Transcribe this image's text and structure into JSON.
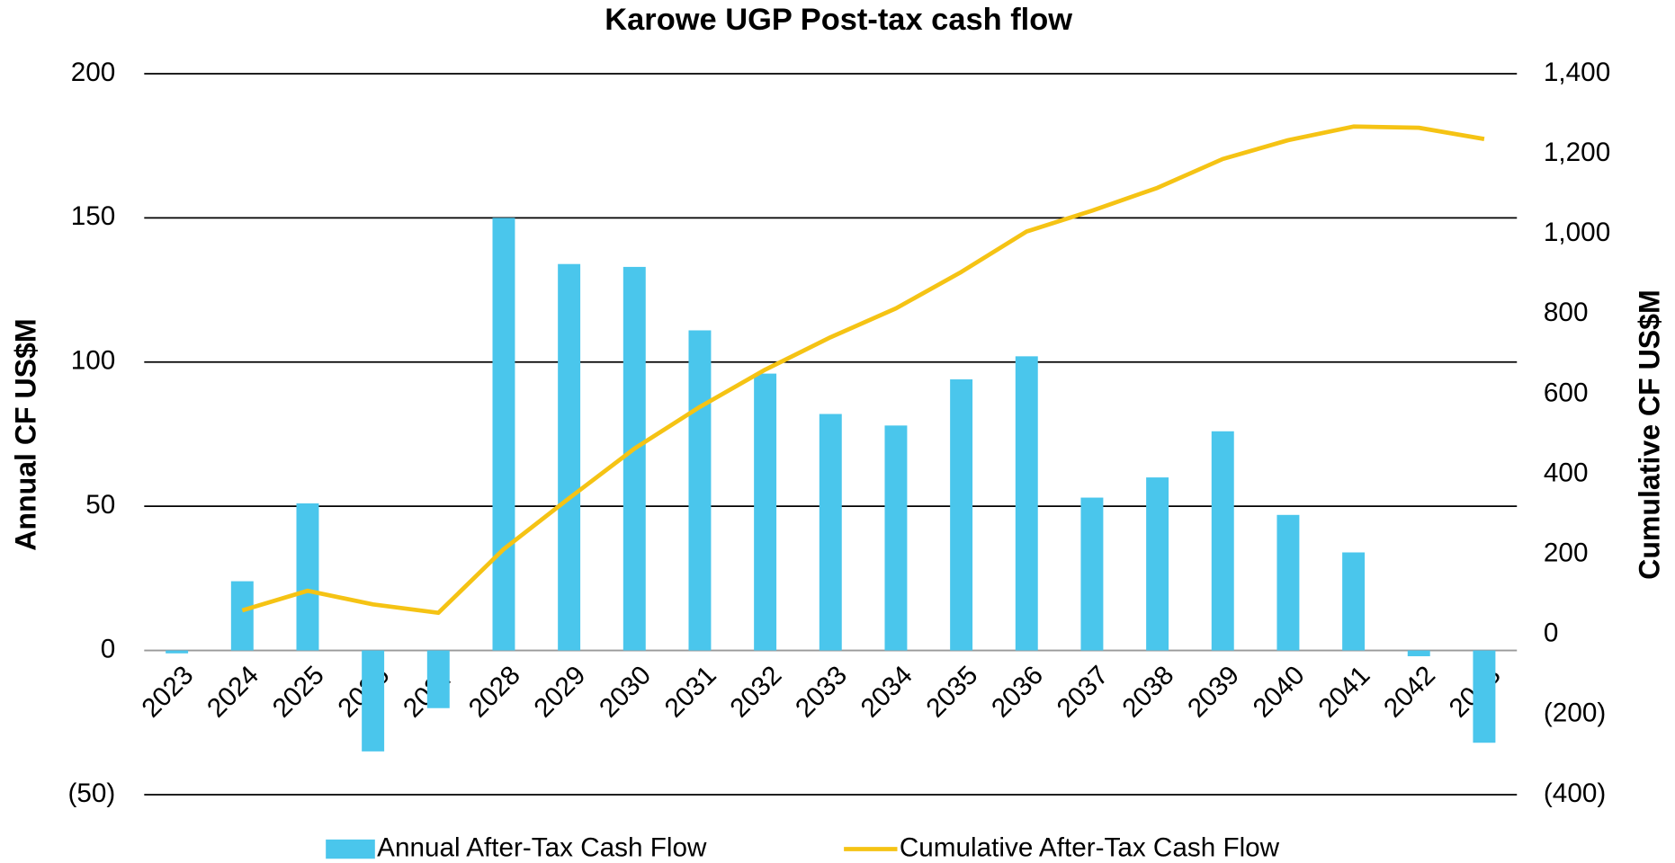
{
  "chart_data": {
    "type": "bar-line",
    "title": "Karowe UGP Post-tax cash flow",
    "y_label": "Annual CF US$M",
    "y2_label": "Cumulative CF US$M",
    "categories": [
      "2023",
      "2024",
      "2025",
      "2026",
      "2027",
      "2028",
      "2029",
      "2030",
      "2031",
      "2032",
      "2033",
      "2034",
      "2035",
      "2036",
      "2037",
      "2038",
      "2039",
      "2040",
      "2041",
      "2042",
      "2043"
    ],
    "series": [
      {
        "name": "Annual After-Tax Cash Flow",
        "type": "bar",
        "color": "#4ac6ec",
        "values": [
          -1,
          24,
          51,
          -35,
          -20,
          150,
          134,
          133,
          111,
          96,
          82,
          78,
          94,
          102,
          53,
          60,
          76,
          47,
          34,
          -2,
          -32
        ]
      },
      {
        "name": "Cumulative After-Tax Cash Flow",
        "type": "line",
        "axis": "y2",
        "color": "#f5c314",
        "values": [
          null,
          60,
          109,
          75,
          54,
          213,
          340,
          464,
          568,
          661,
          742,
          814,
          905,
          1006,
          1058,
          1115,
          1187,
          1234,
          1268,
          1265,
          1237
        ]
      }
    ],
    "ylim": [
      -50,
      200
    ],
    "yticks": [
      {
        "value": -50,
        "label": "(50)"
      },
      0,
      50,
      100,
      150,
      200
    ],
    "y2lim": [
      -400,
      1400
    ],
    "y2ticks": [
      {
        "value": -400,
        "label": "(400)"
      },
      {
        "value": -200,
        "label": "(200)"
      },
      0,
      200,
      400,
      600,
      800,
      {
        "value": 1000,
        "label": "1,000"
      },
      {
        "value": 1200,
        "label": "1,200"
      },
      {
        "value": 1400,
        "label": "1,400"
      }
    ],
    "grid": true,
    "legend": "bottom"
  }
}
